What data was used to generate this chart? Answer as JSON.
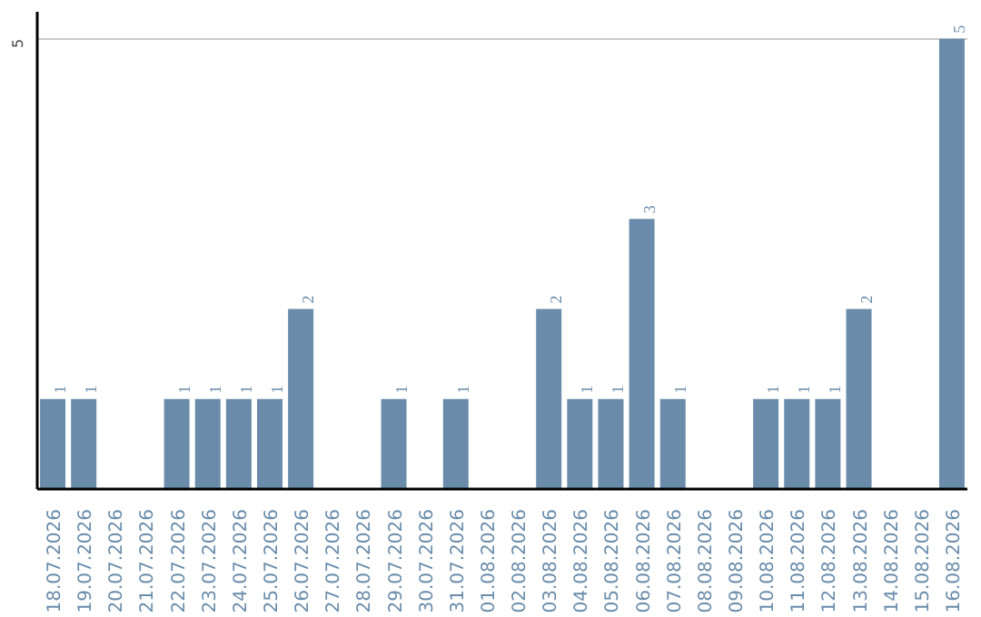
{
  "chart_data": {
    "type": "bar",
    "categories": [
      "18.07.2026",
      "19.07.2026",
      "20.07.2026",
      "21.07.2026",
      "22.07.2026",
      "23.07.2026",
      "24.07.2026",
      "25.07.2026",
      "26.07.2026",
      "27.07.2026",
      "28.07.2026",
      "29.07.2026",
      "30.07.2026",
      "31.07.2026",
      "01.08.2026",
      "02.08.2026",
      "03.08.2026",
      "04.08.2026",
      "05.08.2026",
      "06.08.2026",
      "07.08.2026",
      "08.08.2026",
      "09.08.2026",
      "10.08.2026",
      "11.08.2026",
      "12.08.2026",
      "13.08.2026",
      "14.08.2026",
      "15.08.2026",
      "16.08.2026"
    ],
    "values": [
      1,
      1,
      null,
      null,
      1,
      1,
      1,
      1,
      2,
      null,
      null,
      1,
      null,
      1,
      null,
      null,
      2,
      1,
      1,
      3,
      1,
      null,
      null,
      1,
      1,
      1,
      2,
      null,
      null,
      5
    ],
    "color": "#6a8caa",
    "ylim": [
      0,
      5.3
    ],
    "yticks": [
      {
        "value": 0,
        "label": null
      },
      5
    ],
    "grid": "y",
    "data_labels": true
  }
}
